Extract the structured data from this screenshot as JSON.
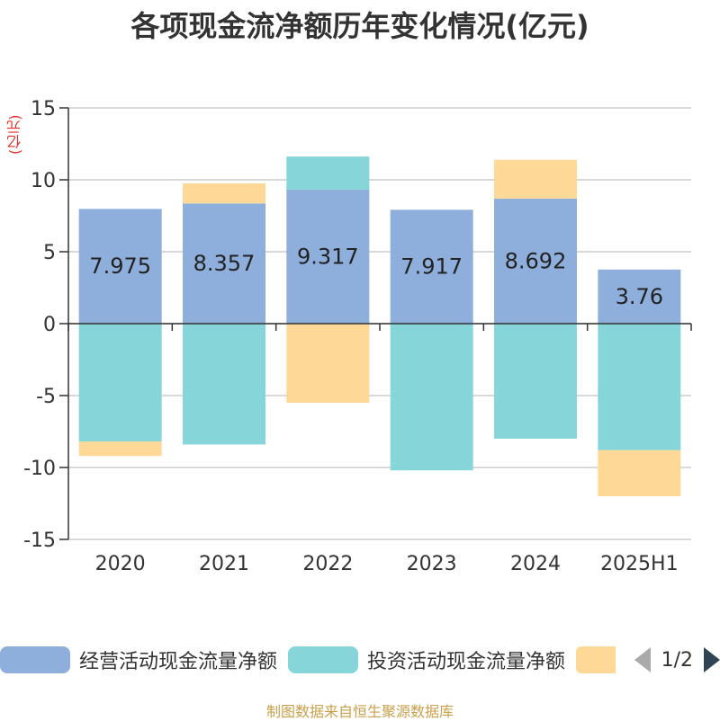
{
  "title": "各项现金流净额历年变化情况(亿元)",
  "footer": "制图数据来自恒生聚源数据库",
  "legend": {
    "items": [
      {
        "label": "经营活动现金流量净额",
        "color": "#8eaedc"
      },
      {
        "label": "投资活动现金流量净额",
        "color": "#86d5d8"
      },
      {
        "label": "",
        "color": "#fed896"
      }
    ],
    "page": "1/2"
  },
  "chart_data": {
    "type": "bar",
    "stacked": true,
    "unit_label": "(亿元)",
    "categories": [
      "2020",
      "2021",
      "2022",
      "2023",
      "2024",
      "2025H1"
    ],
    "ylim": [
      -15,
      15
    ],
    "yticks": [
      15,
      10,
      5,
      0,
      -5,
      -10,
      -15
    ],
    "grid": true,
    "series": [
      {
        "name": "经营活动现金流量净额",
        "color": "#8eaedc",
        "values": [
          7.975,
          8.357,
          9.317,
          7.917,
          8.692,
          3.76
        ],
        "labels": [
          "7.975",
          "8.357",
          "9.317",
          "7.917",
          "8.692",
          "3.76"
        ]
      },
      {
        "name": "投资活动现金流量净额",
        "color": "#86d5d8",
        "values": [
          -8.2,
          -8.4,
          2.3,
          -10.2,
          -8.0,
          -8.8
        ]
      },
      {
        "color": "#fed896",
        "values": [
          -1.0,
          1.4,
          -5.5,
          0,
          2.7,
          -3.2
        ]
      }
    ]
  }
}
